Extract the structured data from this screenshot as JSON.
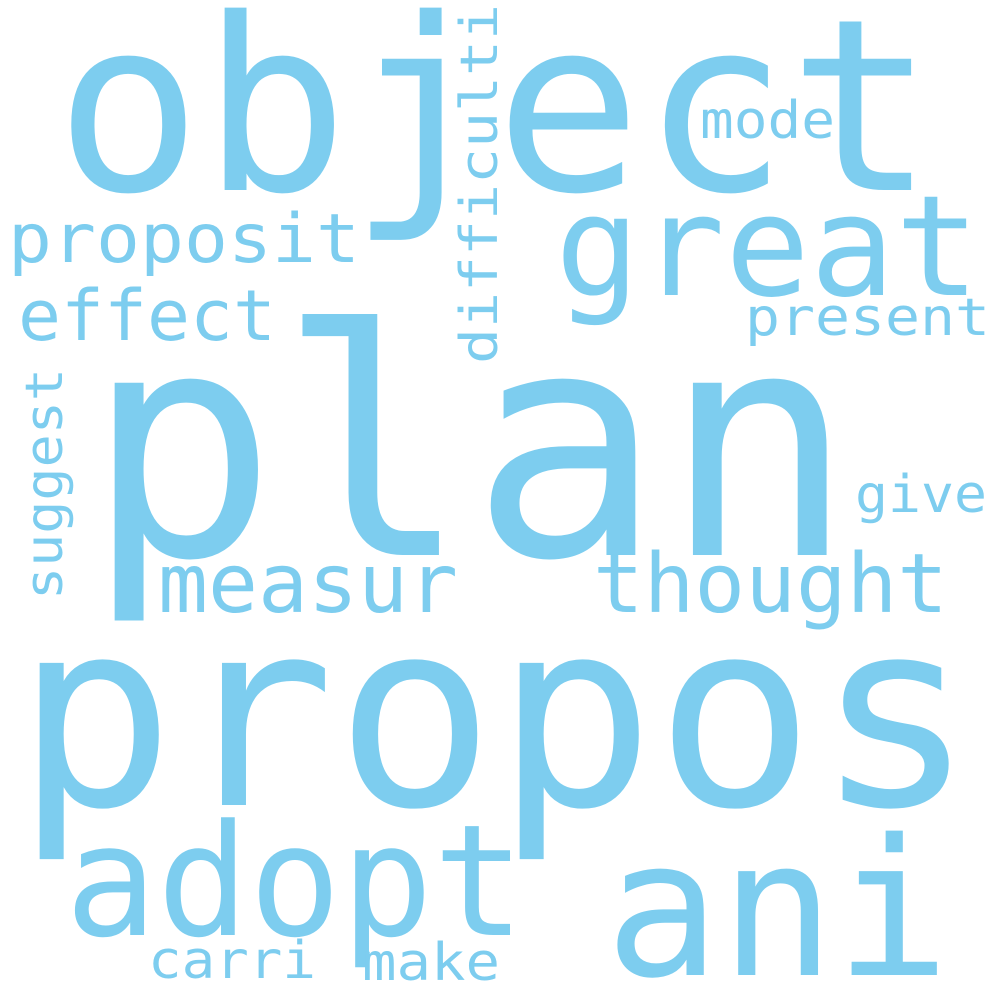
{
  "style": {
    "word_color": "#7dcdef",
    "background": "#ffffff"
  },
  "words": {
    "plan": "plan",
    "propos": "propos",
    "object": "object",
    "ani": "ani",
    "great": "great",
    "adopt": "adopt",
    "thought": "thought",
    "measur": "measur",
    "proposit": "proposit",
    "effect": "effect",
    "difficulti": "difficulti",
    "present": "present",
    "mode": "mode",
    "give": "give",
    "suggest": "suggest",
    "carri": "carri",
    "make": "make"
  }
}
